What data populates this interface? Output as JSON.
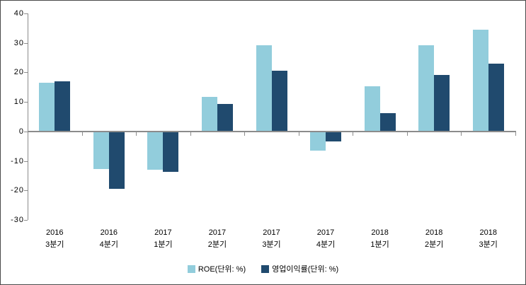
{
  "chart_data": {
    "type": "bar",
    "title": "",
    "xlabel": "",
    "ylabel": "",
    "categories": [
      [
        "2016",
        "3분기"
      ],
      [
        "2016",
        "4분기"
      ],
      [
        "2017",
        "1분기"
      ],
      [
        "2017",
        "2분기"
      ],
      [
        "2017",
        "3분기"
      ],
      [
        "2017",
        "4분기"
      ],
      [
        "2018",
        "1분기"
      ],
      [
        "2018",
        "2분기"
      ],
      [
        "2018",
        "3분기"
      ]
    ],
    "series": [
      {
        "name": "ROE(단위: %)",
        "color": "#92CDDC",
        "values": [
          16.6,
          -12.8,
          -13.1,
          11.7,
          29.3,
          -6.4,
          15.2,
          29.1,
          34.5
        ]
      },
      {
        "name": "영업이익률(단위: %)",
        "color": "#204A6E",
        "values": [
          16.9,
          -19.4,
          -13.8,
          9.3,
          20.6,
          -3.5,
          6.2,
          19.1,
          22.9
        ]
      }
    ],
    "ylim": [
      -30,
      40
    ],
    "yticks": [
      40,
      30,
      20,
      10,
      0,
      -10,
      -20,
      -30
    ],
    "grid": false,
    "legend_position": "bottom",
    "axis_color": "#8c8c8c",
    "text_color": "#000000",
    "background_color": "#ffffff"
  }
}
